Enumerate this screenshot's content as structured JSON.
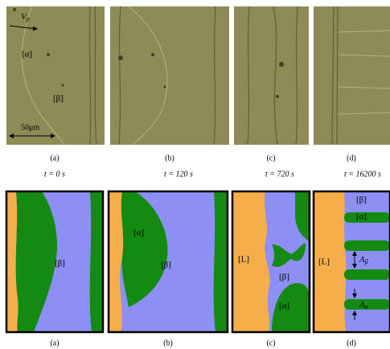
{
  "micrographs": [
    {
      "label": "(a)",
      "time": "t = 0 s"
    },
    {
      "label": "(b)",
      "time": "t = 120 s"
    },
    {
      "label": "(c)",
      "time": "t = 720 s"
    },
    {
      "label": "(d)",
      "time": "t = 16200 s"
    }
  ],
  "micrograph_annotations": {
    "velocity": {
      "symbol": "V",
      "subscript": "p"
    },
    "alpha": "[α]",
    "beta": "[β]",
    "scale_bar": "50μm"
  },
  "simulations": [
    {
      "label": "(a)",
      "regions": [
        "[β]"
      ]
    },
    {
      "label": "(b)",
      "regions": [
        "[α]",
        "[β]"
      ]
    },
    {
      "label": "(c)",
      "regions": [
        "[L]",
        "[β]",
        "[α]"
      ]
    },
    {
      "label": "(d)",
      "regions": [
        "[β]",
        "[α]",
        "[L]"
      ],
      "spacings": [
        {
          "symbol": "Λ",
          "subscript": "β"
        },
        {
          "symbol": "Λ",
          "subscript": "α"
        }
      ]
    }
  ]
}
